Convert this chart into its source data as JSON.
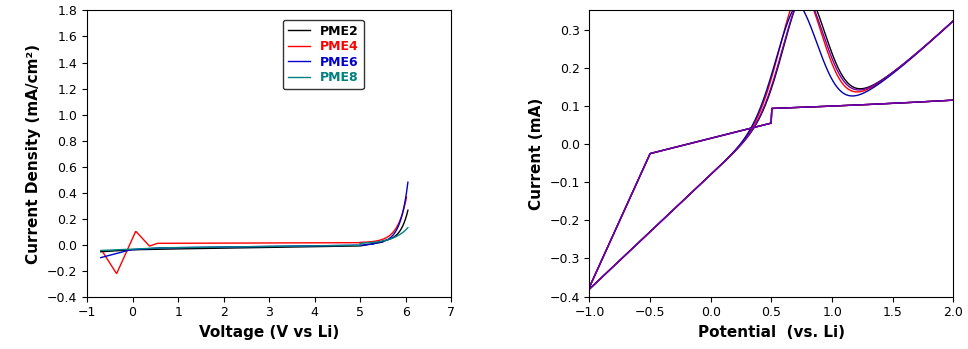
{
  "left_chart": {
    "xlabel": "Voltage (V vs Li)",
    "ylabel": "Current Density (mA/cm²)",
    "xlim": [
      -1,
      7
    ],
    "ylim": [
      -0.4,
      1.8
    ],
    "xticks": [
      -1,
      0,
      1,
      2,
      3,
      4,
      5,
      6,
      7
    ],
    "yticks": [
      -0.4,
      -0.2,
      0.0,
      0.2,
      0.4,
      0.6,
      0.8,
      1.0,
      1.2,
      1.4,
      1.6,
      1.8
    ],
    "legend_labels": [
      "PME2",
      "PME4",
      "PME6",
      "PME8"
    ],
    "legend_colors": [
      "#000000",
      "#ff0000",
      "#0000cc",
      "#008080"
    ],
    "linewidths": [
      1.0,
      1.0,
      1.0,
      1.0
    ]
  },
  "right_chart": {
    "xlabel": "Potential  (vs. Li)",
    "ylabel": "Current (mA)",
    "xlim": [
      -1.0,
      2.0
    ],
    "ylim": [
      -0.4,
      0.35
    ],
    "xticks": [
      -1.0,
      -0.5,
      0.0,
      0.5,
      1.0,
      1.5,
      2.0
    ],
    "yticks": [
      -0.4,
      -0.3,
      -0.2,
      -0.1,
      0.0,
      0.1,
      0.2,
      0.3
    ],
    "line_colors": [
      "#000000",
      "#ff0000",
      "#0000aa",
      "#7700aa"
    ],
    "linewidths": [
      1.0,
      1.0,
      1.0,
      1.0
    ]
  },
  "background_color": "#ffffff",
  "font_color": "#000000",
  "axis_label_fontsize": 11,
  "tick_fontsize": 9,
  "legend_fontsize": 9
}
